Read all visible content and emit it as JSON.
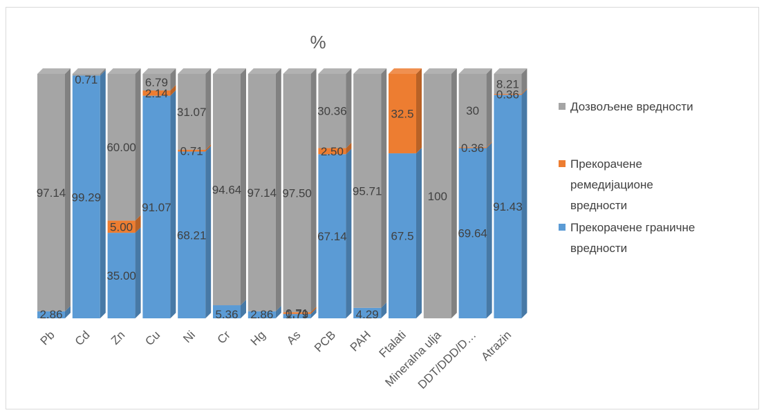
{
  "chart_data": {
    "type": "bar",
    "stacked": true,
    "normalized": true,
    "title": "%",
    "categories": [
      "Pb",
      "Cd",
      "Zn",
      "Cu",
      "Ni",
      "Cr",
      "Hg",
      "As",
      "PCB",
      "PAH",
      "Ftalati",
      "Mineralna ulja",
      "DDT/DDD/D…",
      "Atrazin"
    ],
    "series": [
      {
        "name": "Прекорачене граничне вредности",
        "color": "#5b9bd5",
        "values": [
          2.86,
          99.29,
          35.0,
          91.07,
          68.21,
          5.36,
          2.86,
          1.79,
          67.14,
          4.29,
          67.5,
          0,
          69.64,
          91.43
        ],
        "labels": [
          "2.86",
          "99.29",
          "35.00",
          "91.07",
          "68.21",
          "5.36",
          "2.86",
          "1.79",
          "67.14",
          "4.29",
          "67.5",
          "",
          "69.64",
          "91.43"
        ]
      },
      {
        "name": "Прекорачене ремедијационе вредности",
        "color": "#ed7d31",
        "values": [
          0,
          0,
          5.0,
          2.14,
          0.71,
          0,
          0,
          0.71,
          2.5,
          0,
          32.5,
          0,
          0.36,
          0.36
        ],
        "labels": [
          "",
          "",
          "5.00",
          "2.14",
          "0.71",
          "",
          "",
          "0.71",
          "2.50",
          "",
          "32.5",
          "",
          "0.36",
          "0.36"
        ]
      },
      {
        "name": "Дозвољене вредности",
        "color": "#a5a5a5",
        "values": [
          97.14,
          0.71,
          60.0,
          6.79,
          31.07,
          94.64,
          97.14,
          97.5,
          30.36,
          95.71,
          0,
          100,
          30,
          8.21
        ],
        "labels": [
          "97.14",
          "0.71",
          "60.00",
          "6.79",
          "31.07",
          "94.64",
          "97.14",
          "97.50",
          "30.36",
          "95.71",
          "",
          "100",
          "30",
          "8.21"
        ]
      }
    ],
    "legend": {
      "position": "right",
      "items": [
        {
          "label": "Дозвољене вредности",
          "color": "#a5a5a5"
        },
        {
          "label_lines": [
            "Прекорачене",
            "ремедијационе",
            "вредности"
          ],
          "color": "#ed7d31"
        },
        {
          "label_lines": [
            "Прекорачене граничне",
            "вредности"
          ],
          "color": "#5b9bd5"
        }
      ]
    }
  }
}
